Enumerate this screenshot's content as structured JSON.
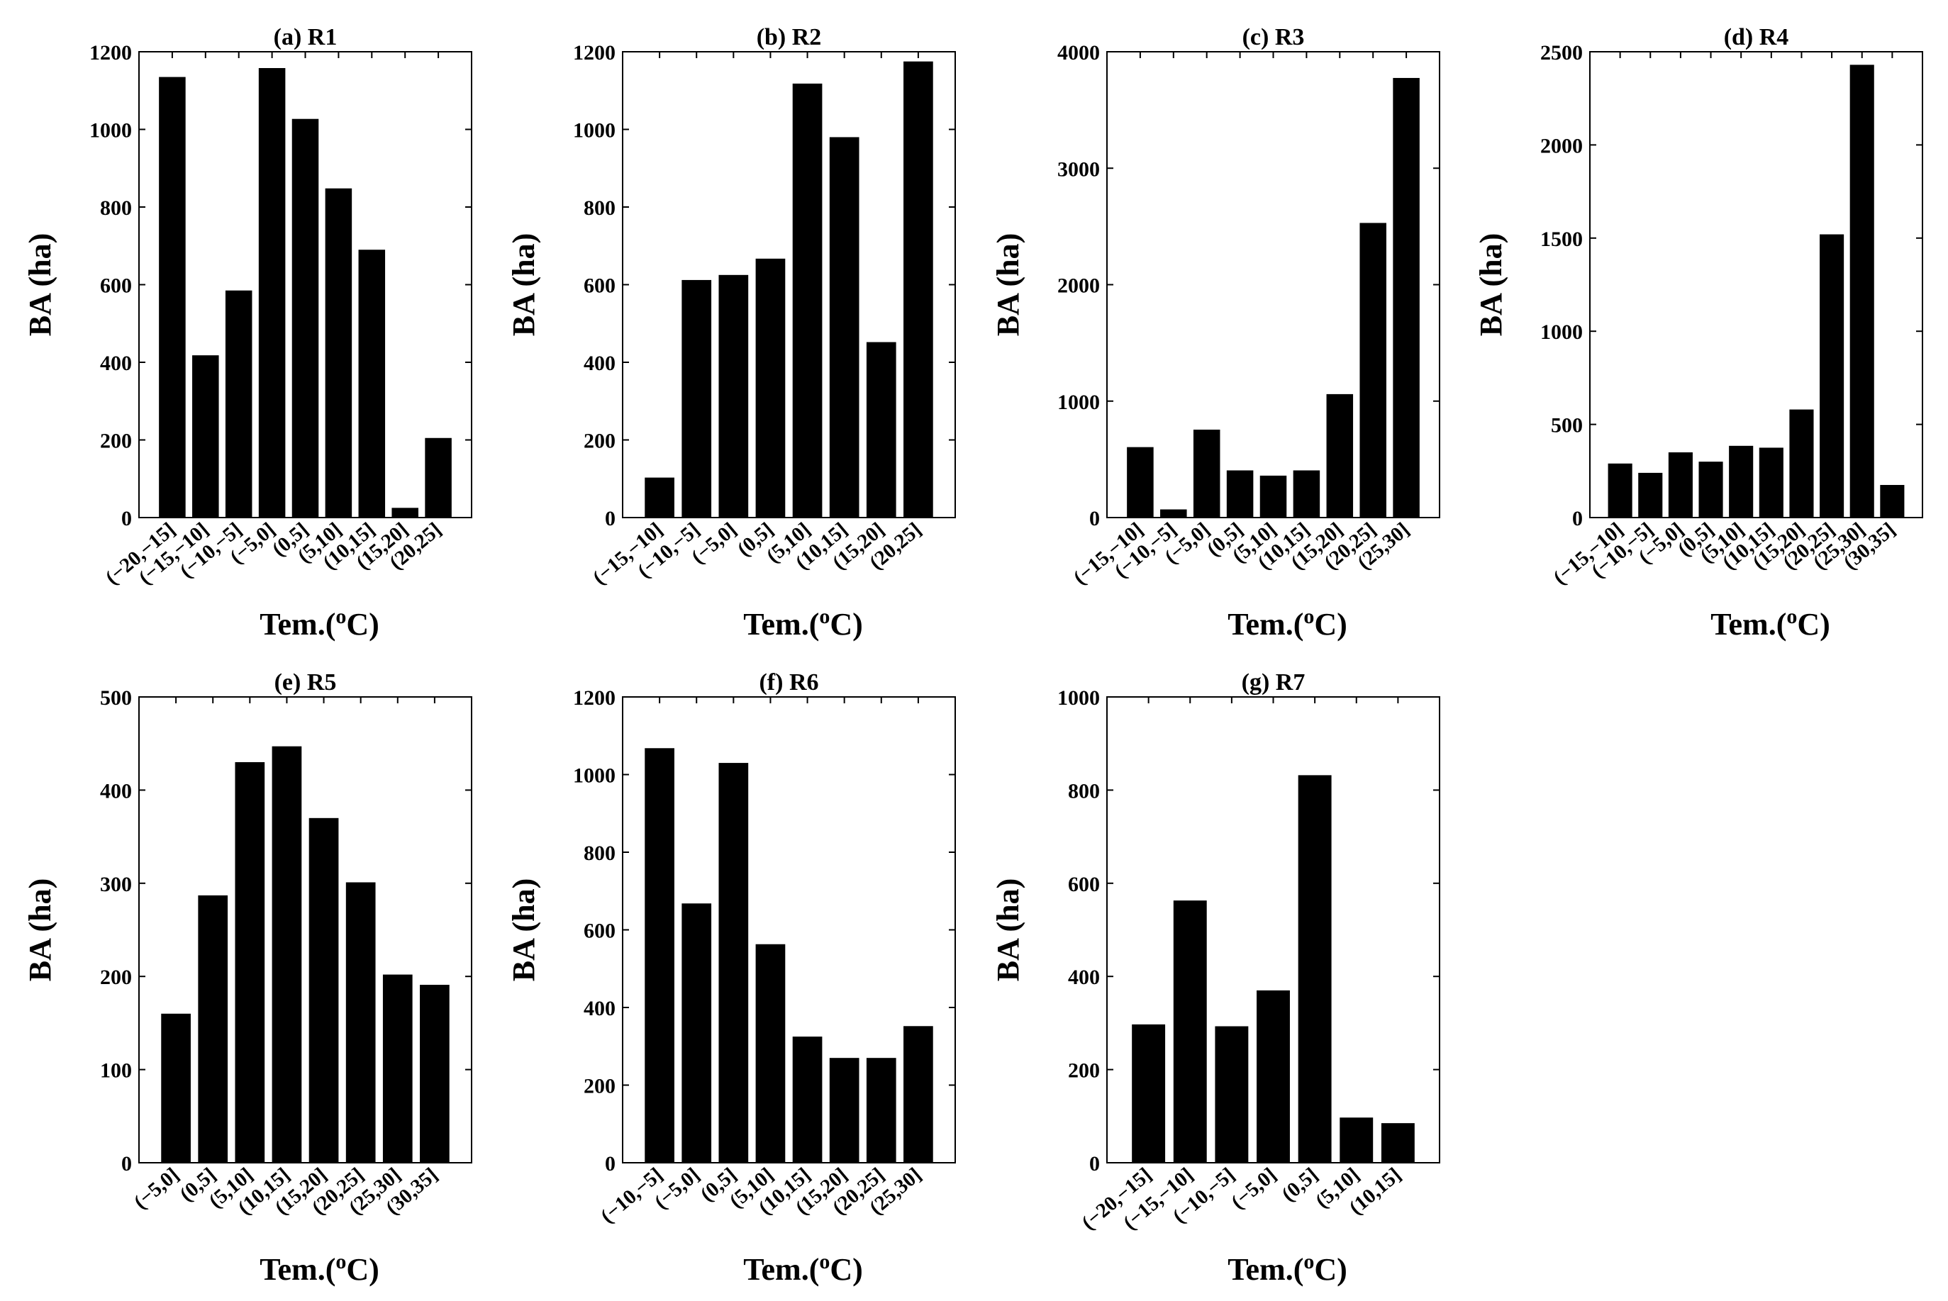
{
  "figure": {
    "xlabel_main": "Tem.(",
    "xlabel_sup": "o",
    "xlabel_tail": "C)",
    "ylabel": "BA (ha)"
  },
  "chart_data": [
    {
      "type": "bar",
      "title": "(a) R1",
      "categories": [
        "(−20,−15]",
        "(−15,−10]",
        "(−10,−5]",
        "(−5,0]",
        "(0,5]",
        "(5,10]",
        "(10,15]",
        "(15,20]",
        "(20,25]"
      ],
      "values": [
        1135,
        418,
        585,
        1158,
        1027,
        848,
        690,
        25,
        205
      ],
      "xlabel": "Tem.(oC)",
      "ylabel": "BA (ha)",
      "ylim": [
        0,
        1200
      ],
      "yticks": [
        "0",
        "200",
        "400",
        "600",
        "800",
        "1000",
        "1200"
      ]
    },
    {
      "type": "bar",
      "title": "(b) R2",
      "categories": [
        "(−15,−10]",
        "(−10,−5]",
        "(−5,0]",
        "(0,5]",
        "(5,10]",
        "(10,15]",
        "(15,20]",
        "(20,25]"
      ],
      "values": [
        103,
        612,
        625,
        667,
        1118,
        980,
        452,
        1175
      ],
      "xlabel": "Tem.(oC)",
      "ylabel": "BA (ha)",
      "ylim": [
        0,
        1200
      ],
      "yticks": [
        "0",
        "200",
        "400",
        "600",
        "800",
        "1000",
        "1200"
      ]
    },
    {
      "type": "bar",
      "title": "(c) R3",
      "categories": [
        "(−15,−10]",
        "(−10,−5]",
        "(−5,0]",
        "(0,5]",
        "(5,10]",
        "(10,15]",
        "(15,20]",
        "(20,25]",
        "(25,30]"
      ],
      "values": [
        605,
        70,
        755,
        405,
        360,
        405,
        1060,
        2530,
        3775
      ],
      "xlabel": "Tem.(oC)",
      "ylabel": "BA (ha)",
      "ylim": [
        0,
        4000
      ],
      "yticks": [
        "0",
        "1000",
        "2000",
        "3000",
        "4000"
      ]
    },
    {
      "type": "bar",
      "title": "(d) R4",
      "categories": [
        "(−15,−10]",
        "(−10,−5]",
        "(−5,0]",
        "(0,5]",
        "(5,10]",
        "(10,15]",
        "(15,20]",
        "(20,25]",
        "(25,30]",
        "(30,35]"
      ],
      "values": [
        290,
        240,
        350,
        300,
        385,
        375,
        580,
        1520,
        2430,
        175
      ],
      "xlabel": "Tem.(oC)",
      "ylabel": "BA (ha)",
      "ylim": [
        0,
        2500
      ],
      "yticks": [
        "0",
        "500",
        "1000",
        "1500",
        "2000",
        "2500"
      ]
    },
    {
      "type": "bar",
      "title": "(e) R5",
      "categories": [
        "(−5,0]",
        "(0,5]",
        "(5,10]",
        "(10,15]",
        "(15,20]",
        "(20,25]",
        "(25,30]",
        "(30,35]"
      ],
      "values": [
        160,
        287,
        430,
        447,
        370,
        301,
        202,
        191
      ],
      "xlabel": "Tem.(oC)",
      "ylabel": "BA (ha)",
      "ylim": [
        0,
        500
      ],
      "yticks": [
        "0",
        "100",
        "200",
        "300",
        "400",
        "500"
      ]
    },
    {
      "type": "bar",
      "title": "(f) R6",
      "categories": [
        "(−10,−5]",
        "(−5,0]",
        "(0,5]",
        "(5,10]",
        "(10,15]",
        "(15,20]",
        "(20,25]",
        "(25,30]"
      ],
      "values": [
        1068,
        668,
        1030,
        563,
        325,
        270,
        270,
        352
      ],
      "xlabel": "Tem.(oC)",
      "ylabel": "BA (ha)",
      "ylim": [
        0,
        1200
      ],
      "yticks": [
        "0",
        "200",
        "400",
        "600",
        "800",
        "1000",
        "1200"
      ]
    },
    {
      "type": "bar",
      "title": "(g) R7",
      "categories": [
        "(−20,−15]",
        "(−15,−10]",
        "(−10,−5]",
        "(−5,0]",
        "(0,5]",
        "(5,10]",
        "(10,15]"
      ],
      "values": [
        297,
        563,
        293,
        370,
        832,
        97,
        85
      ],
      "xlabel": "Tem.(oC)",
      "ylabel": "BA (ha)",
      "ylim": [
        0,
        1000
      ],
      "yticks": [
        "0",
        "200",
        "400",
        "600",
        "800",
        "1000"
      ]
    }
  ]
}
